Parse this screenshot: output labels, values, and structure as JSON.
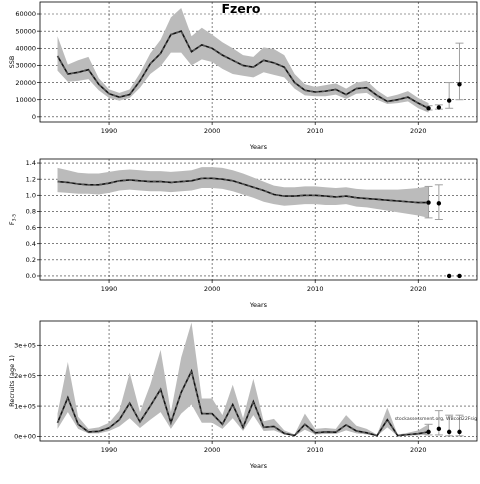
{
  "figure": {
    "title": "Fzero",
    "watermark": "stockassessment.org, WBcod22Fsig"
  },
  "colors": {
    "band": "#bbbbbb",
    "line": "#111111",
    "dash": "#555555",
    "grid": "#333333",
    "errbar": "#a0a0a0",
    "point": "#000000"
  },
  "chart_data": [
    {
      "type": "area",
      "ylabel": "SSB",
      "xlabel": "Years",
      "xlim": [
        1983.3,
        2025.7
      ],
      "ylim": [
        -3000,
        67000
      ],
      "xticks": [
        1990,
        2000,
        2010,
        2020
      ],
      "yticks": [
        0,
        10000,
        20000,
        30000,
        40000,
        50000,
        60000
      ],
      "ytick_labels": [
        "0",
        "10000",
        "20000",
        "30000",
        "40000",
        "50000",
        "60000"
      ],
      "grid": true,
      "x": [
        1985,
        1986,
        1987,
        1988,
        1989,
        1990,
        1991,
        1992,
        1993,
        1994,
        1995,
        1996,
        1997,
        1998,
        1999,
        2000,
        2001,
        2002,
        2003,
        2004,
        2005,
        2006,
        2007,
        2008,
        2009,
        2010,
        2011,
        2012,
        2013,
        2014,
        2015,
        2016,
        2017,
        2018,
        2019,
        2020,
        2021
      ],
      "values": [
        35500,
        25000,
        26000,
        27500,
        19000,
        13500,
        11500,
        13000,
        21000,
        31000,
        37000,
        48000,
        50000,
        38000,
        42000,
        40000,
        36000,
        33000,
        30000,
        29000,
        33000,
        31500,
        29000,
        20000,
        15500,
        14500,
        15000,
        16000,
        13000,
        16500,
        17000,
        12500,
        9000,
        10000,
        11500,
        8000,
        5000
      ],
      "lower": [
        27000,
        20500,
        21000,
        22000,
        15500,
        11000,
        9500,
        11000,
        17000,
        25000,
        29500,
        37500,
        37500,
        30000,
        33500,
        32000,
        28000,
        25000,
        24000,
        23000,
        26000,
        24500,
        23000,
        16500,
        12500,
        12000,
        12000,
        13000,
        10500,
        13500,
        14000,
        10000,
        7500,
        8000,
        9000,
        5000,
        2500
      ],
      "upper": [
        47000,
        30500,
        33000,
        35000,
        22500,
        16000,
        14000,
        16000,
        25500,
        37000,
        45000,
        58000,
        63500,
        47000,
        52000,
        48000,
        43500,
        40000,
        36000,
        35000,
        40500,
        39500,
        36000,
        25000,
        19000,
        17500,
        18500,
        19500,
        16500,
        20000,
        21000,
        15500,
        11500,
        13000,
        15000,
        11000,
        8000
      ],
      "forecast": [
        {
          "x": 2021,
          "value": 5000,
          "lower": 4000,
          "upper": 6500
        },
        {
          "x": 2022,
          "value": 5500,
          "lower": 4500,
          "upper": 7000
        },
        {
          "x": 2023,
          "value": 9500,
          "lower": 5000,
          "upper": 20000
        },
        {
          "x": 2024,
          "value": 19000,
          "lower": 10000,
          "upper": 43000
        }
      ]
    },
    {
      "type": "area",
      "ylabel": "F",
      "ylabel_sub": "3-5",
      "xlabel": "Years",
      "xlim": [
        1983.3,
        2025.7
      ],
      "ylim": [
        -0.05,
        1.45
      ],
      "xticks": [
        1990,
        2000,
        2010,
        2020
      ],
      "yticks": [
        0,
        0.2,
        0.4,
        0.6,
        0.8,
        1.0,
        1.2,
        1.4
      ],
      "ytick_labels": [
        "0.0",
        "0.2",
        "0.4",
        "0.6",
        "0.8",
        "1.0",
        "1.2",
        "1.4"
      ],
      "grid": true,
      "x": [
        1985,
        1986,
        1987,
        1988,
        1989,
        1990,
        1991,
        1992,
        1993,
        1994,
        1995,
        1996,
        1997,
        1998,
        1999,
        2000,
        2001,
        2002,
        2003,
        2004,
        2005,
        2006,
        2007,
        2008,
        2009,
        2010,
        2011,
        2012,
        2013,
        2014,
        2015,
        2016,
        2017,
        2018,
        2019,
        2020,
        2021
      ],
      "values": [
        1.17,
        1.16,
        1.14,
        1.13,
        1.13,
        1.15,
        1.18,
        1.19,
        1.18,
        1.17,
        1.17,
        1.16,
        1.17,
        1.18,
        1.21,
        1.21,
        1.2,
        1.18,
        1.14,
        1.1,
        1.06,
        1.01,
        0.99,
        0.99,
        1.0,
        1.0,
        0.99,
        0.98,
        0.99,
        0.97,
        0.96,
        0.95,
        0.94,
        0.93,
        0.92,
        0.91,
        0.91
      ],
      "lower": [
        1.04,
        1.03,
        1.02,
        1.02,
        1.01,
        1.03,
        1.06,
        1.07,
        1.06,
        1.05,
        1.05,
        1.04,
        1.05,
        1.06,
        1.09,
        1.09,
        1.08,
        1.05,
        1.01,
        0.97,
        0.92,
        0.89,
        0.87,
        0.88,
        0.89,
        0.89,
        0.88,
        0.88,
        0.89,
        0.86,
        0.85,
        0.83,
        0.81,
        0.79,
        0.77,
        0.75,
        0.72
      ],
      "upper": [
        1.34,
        1.31,
        1.28,
        1.27,
        1.27,
        1.29,
        1.31,
        1.32,
        1.31,
        1.3,
        1.3,
        1.29,
        1.3,
        1.31,
        1.35,
        1.35,
        1.34,
        1.31,
        1.27,
        1.22,
        1.17,
        1.12,
        1.1,
        1.1,
        1.11,
        1.11,
        1.1,
        1.09,
        1.1,
        1.08,
        1.07,
        1.07,
        1.07,
        1.07,
        1.08,
        1.09,
        1.11
      ],
      "forecast": [
        {
          "x": 2021,
          "value": 0.91,
          "lower": 0.72,
          "upper": 1.11
        },
        {
          "x": 2022,
          "value": 0.9,
          "lower": 0.7,
          "upper": 1.13
        },
        {
          "x": 2023,
          "value": 0.0,
          "lower": 0.0,
          "upper": 0.0
        },
        {
          "x": 2024,
          "value": 0.0,
          "lower": 0.0,
          "upper": 0.0
        }
      ]
    },
    {
      "type": "area",
      "ylabel": "Recruits (age 1)",
      "xlabel": "Years",
      "xlim": [
        1983.3,
        2025.7
      ],
      "ylim": [
        -15000,
        380000
      ],
      "xticks": [
        1990,
        2000,
        2010,
        2020
      ],
      "yticks": [
        0,
        100000,
        200000,
        300000
      ],
      "ytick_labels": [
        "0e+00",
        "1e+05",
        "2e+05",
        "3e+05"
      ],
      "grid": true,
      "x": [
        1985,
        1986,
        1987,
        1988,
        1989,
        1990,
        1991,
        1992,
        1993,
        1994,
        1995,
        1996,
        1997,
        1998,
        1999,
        2000,
        2001,
        2002,
        2003,
        2004,
        2005,
        2006,
        2007,
        2008,
        2009,
        2010,
        2011,
        2012,
        2013,
        2014,
        2015,
        2016,
        2017,
        2018,
        2019,
        2020,
        2021
      ],
      "values": [
        45000,
        128000,
        40000,
        15000,
        17000,
        28000,
        55000,
        110000,
        48000,
        100000,
        155000,
        45000,
        145000,
        215000,
        75000,
        75000,
        40000,
        105000,
        30000,
        115000,
        30000,
        33000,
        10000,
        3000,
        40000,
        12000,
        15000,
        14000,
        38000,
        18000,
        12000,
        2500,
        55000,
        3000,
        6000,
        9000,
        15000
      ],
      "lower": [
        25000,
        80000,
        25000,
        10000,
        10000,
        18000,
        33000,
        60000,
        28000,
        55000,
        80000,
        25000,
        75000,
        105000,
        45000,
        45000,
        25000,
        60000,
        18000,
        70000,
        18000,
        20000,
        6000,
        1500,
        22000,
        7000,
        8000,
        8000,
        20000,
        10000,
        7000,
        1500,
        30000,
        1500,
        3000,
        4000,
        5000
      ],
      "upper": [
        75000,
        245000,
        65000,
        25000,
        30000,
        45000,
        85000,
        210000,
        80000,
        170000,
        285000,
        80000,
        260000,
        375000,
        125000,
        125000,
        70000,
        170000,
        60000,
        190000,
        50000,
        58000,
        20000,
        7000,
        75000,
        25000,
        28000,
        25000,
        70000,
        35000,
        25000,
        6000,
        95000,
        6000,
        12000,
        20000,
        40000
      ],
      "forecast": [
        {
          "x": 2021,
          "value": 15000,
          "lower": 5000,
          "upper": 40000
        },
        {
          "x": 2022,
          "value": 25000,
          "lower": 5000,
          "upper": 85000
        },
        {
          "x": 2023,
          "value": 15000,
          "lower": 2000,
          "upper": 70000
        },
        {
          "x": 2024,
          "value": 15000,
          "lower": 2000,
          "upper": 70000
        }
      ]
    }
  ]
}
